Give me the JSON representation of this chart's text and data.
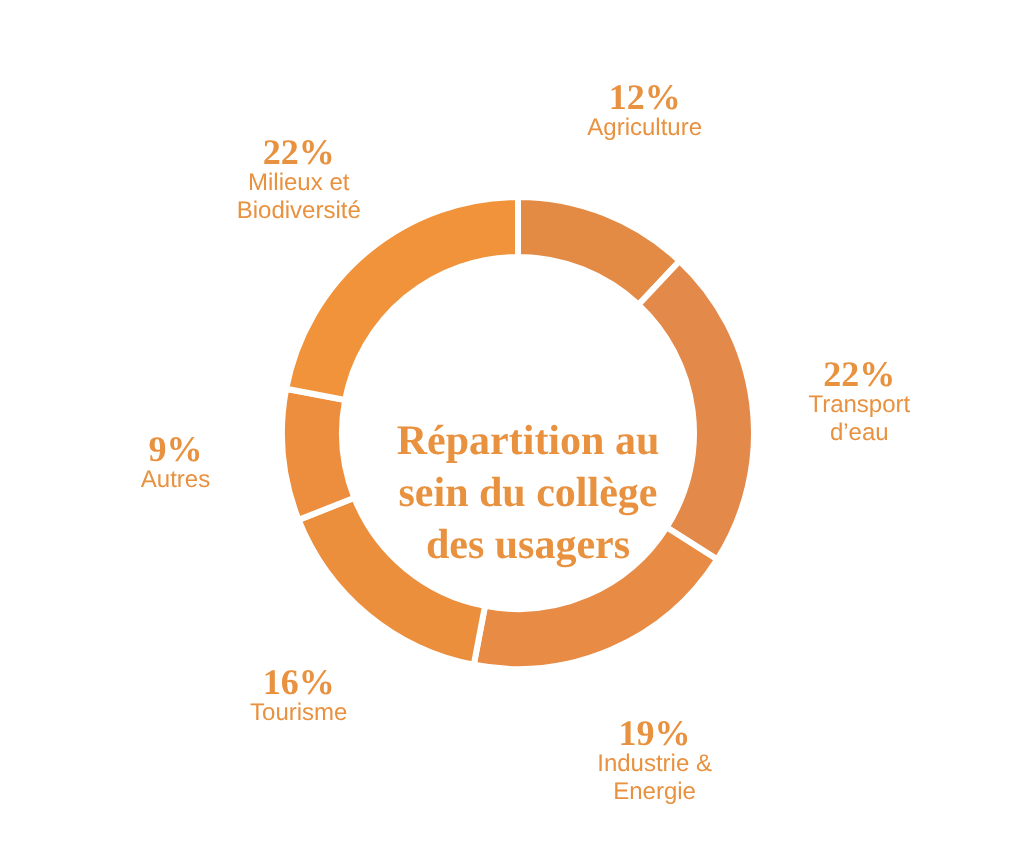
{
  "chart_data": {
    "type": "donut",
    "title": "Répartition au sein du collège des usagers",
    "categories": [
      "Agriculture",
      "Transport d’eau",
      "Industrie & Energie",
      "Tourisme",
      "Autres",
      "Milieux et Biodiversité"
    ],
    "values": [
      12,
      22,
      19,
      16,
      9,
      22
    ],
    "value_labels": [
      "12%",
      "22%",
      "19%",
      "16%",
      "9%",
      "22%"
    ],
    "colors": [
      "#e38a45",
      "#e3894a",
      "#e88b45",
      "#ec8f3c",
      "#ec8e3e",
      "#f1933a"
    ],
    "legend": false
  }
}
